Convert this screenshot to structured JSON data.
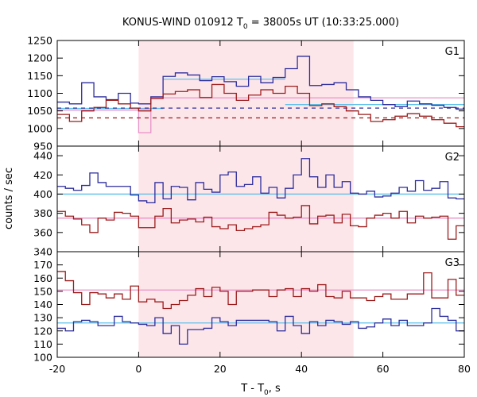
{
  "chart_data": {
    "type": "line",
    "title": {
      "main": "KONUS-WIND 010912 T",
      "sub": "0",
      "tail": " = 38005s UT (10:33:25.000)"
    },
    "xlabel": {
      "main": "T - T",
      "sub": "0",
      "tail": ", s"
    },
    "ylabel": "counts / sec",
    "xlim": [
      -20,
      80
    ],
    "x_ticks": [
      -20,
      0,
      20,
      40,
      60,
      80
    ],
    "highlight_interval": [
      0,
      52.8
    ],
    "colors": {
      "blue": "#2c2c9c",
      "red": "#9c1c1c",
      "cyan": "#5cc0ec",
      "pink": "#e890c8",
      "band": "#fde6ea",
      "axis": "#000000"
    },
    "panels": [
      {
        "name": "G1",
        "ylim": [
          950,
          1250
        ],
        "y_ticks": [
          950,
          1000,
          1050,
          1100,
          1150,
          1200,
          1250
        ],
        "bin_edges": [
          -20,
          -17,
          -14,
          -11,
          -8,
          -5,
          -2,
          0,
          3,
          6,
          9,
          12,
          15,
          18,
          21,
          24,
          27,
          30,
          33,
          36,
          39,
          42,
          45,
          48,
          51,
          54,
          57,
          60,
          63,
          66,
          69,
          72,
          75,
          78,
          80
        ],
        "series": [
          {
            "name": "blue",
            "color": "#2c2c9c",
            "values": [
              1075,
              1070,
              1130,
              1090,
              1082,
              1100,
              1072,
              1070,
              1090,
              1148,
              1158,
              1152,
              1136,
              1147,
              1133,
              1120,
              1148,
              1130,
              1145,
              1170,
              1205,
              1122,
              1125,
              1130,
              1110,
              1090,
              1080,
              1068,
              1062,
              1078,
              1070,
              1066,
              1060,
              1055
            ]
          },
          {
            "name": "red",
            "color": "#9c1c1c",
            "values": [
              1040,
              1020,
              1050,
              1060,
              1080,
              1070,
              1058,
              1050,
              1085,
              1098,
              1105,
              1110,
              1088,
              1125,
              1100,
              1080,
              1095,
              1110,
              1100,
              1120,
              1100,
              1065,
              1070,
              1062,
              1050,
              1040,
              1020,
              1025,
              1035,
              1042,
              1035,
              1025,
              1015,
              1005
            ]
          }
        ],
        "blue_fit": {
          "color": "#5cc0ec",
          "segments": [
            {
              "x": [
                -20,
                6
              ],
              "y": 1057
            },
            {
              "x": [
                6,
                36
              ],
              "y": 1140
            },
            {
              "x": [
                36,
                80
              ],
              "y": 1068
            }
          ]
        },
        "red_fit": {
          "color": "#e890c8",
          "segments": [
            {
              "x": [
                -20,
                0
              ],
              "y": 1052
            },
            {
              "x": [
                3,
                80
              ],
              "y": 1087
            }
          ]
        },
        "blue_bg_dashed": 1058,
        "red_bg_dashed": 1030,
        "pink_box": {
          "x": [
            0,
            3
          ],
          "y": [
            988,
            1055
          ]
        }
      },
      {
        "name": "G2",
        "ylim": [
          340,
          450
        ],
        "y_ticks": [
          340,
          360,
          380,
          400,
          420,
          440
        ],
        "bin_edges": [
          -20,
          -18,
          -16,
          -14,
          -12,
          -10,
          -8,
          -6,
          -4,
          -2,
          0,
          2,
          4,
          6,
          8,
          10,
          12,
          14,
          16,
          18,
          20,
          22,
          24,
          26,
          28,
          30,
          32,
          34,
          36,
          38,
          40,
          42,
          44,
          46,
          48,
          50,
          52,
          54,
          56,
          58,
          60,
          62,
          64,
          66,
          68,
          70,
          72,
          74,
          76,
          78,
          80
        ],
        "series": [
          {
            "name": "blue",
            "color": "#2c2c9c",
            "values": [
              408,
              406,
              404,
              409,
              422,
              412,
              408,
              408,
              408,
              399,
              393,
              391,
              412,
              395,
              408,
              407,
              394,
              412,
              405,
              402,
              420,
              423,
              408,
              410,
              418,
              401,
              407,
              396,
              406,
              420,
              437,
              418,
              407,
              420,
              407,
              413,
              401,
              400,
              403,
              397,
              398,
              401,
              407,
              403,
              414,
              404,
              406,
              413,
              396,
              395
            ]
          },
          {
            "name": "red",
            "color": "#9c1c1c",
            "values": [
              382,
              377,
              374,
              368,
              360,
              375,
              373,
              381,
              380,
              377,
              365,
              365,
              377,
              385,
              370,
              373,
              374,
              371,
              376,
              366,
              364,
              368,
              362,
              364,
              366,
              368,
              381,
              378,
              375,
              376,
              388,
              369,
              377,
              378,
              370,
              379,
              367,
              366,
              375,
              378,
              380,
              375,
              382,
              370,
              377,
              375,
              376,
              377,
              353,
              367
            ]
          }
        ],
        "blue_fit": {
          "color": "#5cc0ec",
          "segments": [
            {
              "x": [
                -20,
                80
              ],
              "y": 400
            }
          ]
        },
        "red_fit": {
          "color": "#e890c8",
          "segments": [
            {
              "x": [
                -20,
                80
              ],
              "y": 375
            }
          ]
        }
      },
      {
        "name": "G3",
        "ylim": [
          100,
          180
        ],
        "y_ticks": [
          100,
          110,
          120,
          130,
          140,
          150,
          160,
          170
        ],
        "bin_edges": [
          -20,
          -18,
          -16,
          -14,
          -12,
          -10,
          -8,
          -6,
          -4,
          -2,
          0,
          2,
          4,
          6,
          8,
          10,
          12,
          14,
          16,
          18,
          20,
          22,
          24,
          26,
          28,
          30,
          32,
          34,
          36,
          38,
          40,
          42,
          44,
          46,
          48,
          50,
          52,
          54,
          56,
          58,
          60,
          62,
          64,
          66,
          68,
          70,
          72,
          74,
          76,
          78,
          80
        ],
        "series": [
          {
            "name": "blue",
            "color": "#2c2c9c",
            "values": [
              122,
              120,
              127,
              128,
              127,
              124,
              124,
              131,
              127,
              126,
              125,
              124,
              130,
              118,
              124,
              110,
              121,
              121,
              122,
              130,
              127,
              124,
              128,
              128,
              128,
              128,
              127,
              120,
              131,
              124,
              118,
              127,
              124,
              128,
              127,
              125,
              127,
              122,
              123,
              126,
              129,
              124,
              128,
              124,
              124,
              126,
              137,
              131,
              128,
              120
            ]
          },
          {
            "name": "red",
            "color": "#9c1c1c",
            "values": [
              165,
              158,
              149,
              140,
              149,
              148,
              145,
              148,
              144,
              154,
              142,
              144,
              142,
              137,
              140,
              143,
              147,
              152,
              146,
              153,
              150,
              140,
              150,
              150,
              151,
              151,
              146,
              151,
              152,
              146,
              152,
              150,
              155,
              146,
              145,
              150,
              145,
              145,
              143,
              146,
              148,
              144,
              144,
              148,
              148,
              164,
              145,
              145,
              159,
              147
            ]
          }
        ],
        "blue_fit": {
          "color": "#5cc0ec",
          "segments": [
            {
              "x": [
                -20,
                80
              ],
              "y": 126
            }
          ]
        },
        "red_fit": {
          "color": "#e890c8",
          "segments": [
            {
              "x": [
                -20,
                80
              ],
              "y": 151
            }
          ]
        }
      }
    ]
  }
}
